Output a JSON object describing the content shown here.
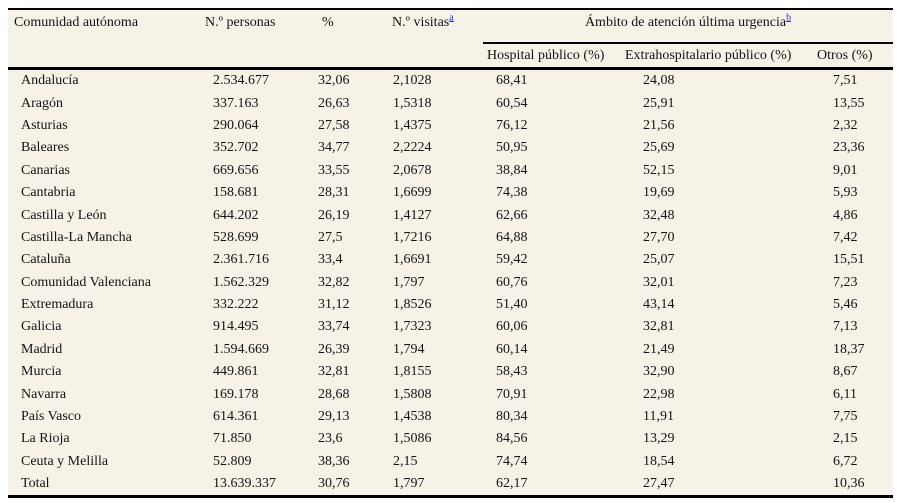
{
  "colors": {
    "background": "#f6f2e7",
    "text": "#141414",
    "rule": "#000000",
    "link": "#2b2bd5"
  },
  "table": {
    "headers": {
      "comunidad": "Comunidad autónoma",
      "personas": "N.º personas",
      "pct": "%",
      "visitas": "N.º visitas",
      "visitas_footnote": "a",
      "ambito": "Ámbito de atención última urgencia",
      "ambito_footnote": "b",
      "sub": [
        "Hospital público (%)",
        "Extrahospitalario público (%)",
        "Otros (%)"
      ]
    },
    "rows": [
      {
        "comunidad": "Andalucía",
        "personas": "2.534.677",
        "pct": "32,06",
        "visitas": "2,1028",
        "hospital": "68,41",
        "extrahospitalario": "24,08",
        "otros": "7,51"
      },
      {
        "comunidad": "Aragón",
        "personas": "337.163",
        "pct": "26,63",
        "visitas": "1,5318",
        "hospital": "60,54",
        "extrahospitalario": "25,91",
        "otros": "13,55"
      },
      {
        "comunidad": "Asturias",
        "personas": "290.064",
        "pct": "27,58",
        "visitas": "1,4375",
        "hospital": "76,12",
        "extrahospitalario": "21,56",
        "otros": "2,32"
      },
      {
        "comunidad": "Baleares",
        "personas": "352.702",
        "pct": "34,77",
        "visitas": "2,2224",
        "hospital": "50,95",
        "extrahospitalario": "25,69",
        "otros": "23,36"
      },
      {
        "comunidad": "Canarias",
        "personas": "669.656",
        "pct": "33,55",
        "visitas": "2,0678",
        "hospital": "38,84",
        "extrahospitalario": "52,15",
        "otros": "9,01"
      },
      {
        "comunidad": "Cantabria",
        "personas": "158.681",
        "pct": "28,31",
        "visitas": "1,6699",
        "hospital": "74,38",
        "extrahospitalario": "19,69",
        "otros": "5,93"
      },
      {
        "comunidad": "Castilla y León",
        "personas": "644.202",
        "pct": "26,19",
        "visitas": "1,4127",
        "hospital": "62,66",
        "extrahospitalario": "32,48",
        "otros": "4,86"
      },
      {
        "comunidad": "Castilla-La Mancha",
        "personas": "528.699",
        "pct": "27,5",
        "visitas": "1,7216",
        "hospital": "64,88",
        "extrahospitalario": "27,70",
        "otros": "7,42"
      },
      {
        "comunidad": "Cataluña",
        "personas": "2.361.716",
        "pct": "33,4",
        "visitas": "1,6691",
        "hospital": "59,42",
        "extrahospitalario": "25,07",
        "otros": "15,51"
      },
      {
        "comunidad": "Comunidad Valenciana",
        "personas": "1.562.329",
        "pct": "32,82",
        "visitas": "1,797",
        "hospital": "60,76",
        "extrahospitalario": "32,01",
        "otros": "7,23"
      },
      {
        "comunidad": "Extremadura",
        "personas": "332.222",
        "pct": "31,12",
        "visitas": "1,8526",
        "hospital": "51,40",
        "extrahospitalario": "43,14",
        "otros": "5,46"
      },
      {
        "comunidad": "Galicia",
        "personas": "914.495",
        "pct": "33,74",
        "visitas": "1,7323",
        "hospital": "60,06",
        "extrahospitalario": "32,81",
        "otros": "7,13"
      },
      {
        "comunidad": "Madrid",
        "personas": "1.594.669",
        "pct": "26,39",
        "visitas": "1,794",
        "hospital": "60,14",
        "extrahospitalario": "21,49",
        "otros": "18,37"
      },
      {
        "comunidad": "Murcia",
        "personas": "449.861",
        "pct": "32,81",
        "visitas": "1,8155",
        "hospital": "58,43",
        "extrahospitalario": "32,90",
        "otros": "8,67"
      },
      {
        "comunidad": "Navarra",
        "personas": "169.178",
        "pct": "28,68",
        "visitas": "1,5808",
        "hospital": "70,91",
        "extrahospitalario": "22,98",
        "otros": "6,11"
      },
      {
        "comunidad": "País Vasco",
        "personas": "614.361",
        "pct": "29,13",
        "visitas": "1,4538",
        "hospital": "80,34",
        "extrahospitalario": "11,91",
        "otros": "7,75"
      },
      {
        "comunidad": "La Rioja",
        "personas": "71.850",
        "pct": "23,6",
        "visitas": "1,5086",
        "hospital": "84,56",
        "extrahospitalario": "13,29",
        "otros": "2,15"
      },
      {
        "comunidad": "Ceuta y Melilla",
        "personas": "52.809",
        "pct": "38,36",
        "visitas": "2,15",
        "hospital": "74,74",
        "extrahospitalario": "18,54",
        "otros": "6,72"
      },
      {
        "comunidad": "Total",
        "personas": "13.639.337",
        "pct": "30,76",
        "visitas": "1,797",
        "hospital": "62,17",
        "extrahospitalario": "27,47",
        "otros": "10,36"
      }
    ]
  }
}
